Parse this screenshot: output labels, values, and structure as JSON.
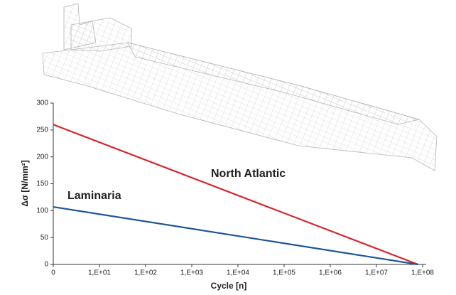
{
  "chart_data": {
    "type": "line",
    "x_label": "Cycle [n]",
    "y_label": "Δσ [N/mm²]",
    "xlim": [
      0,
      8
    ],
    "ylim": [
      0,
      300
    ],
    "xticks": [
      0,
      {
        "value": 1,
        "label": "1,E+01"
      },
      {
        "value": 2,
        "label": "1,E+02"
      },
      {
        "value": 3,
        "label": "1,E+03"
      },
      {
        "value": 4,
        "label": "1,E+04"
      },
      {
        "value": 5,
        "label": "1,E+05"
      },
      {
        "value": 6,
        "label": "1,E+06"
      },
      {
        "value": 7,
        "label": "1,E+07"
      },
      {
        "value": 8,
        "label": "1,E+08"
      }
    ],
    "yticks": [
      0,
      50,
      100,
      150,
      200,
      250,
      300
    ],
    "series": [
      {
        "name": "North Atlantic",
        "color": "#d7262b",
        "x": [
          0,
          7.9
        ],
        "values": [
          260,
          0
        ]
      },
      {
        "name": "Laminaria",
        "color": "#1f5597",
        "x": [
          0,
          7.9
        ],
        "values": [
          107,
          0
        ]
      }
    ]
  }
}
